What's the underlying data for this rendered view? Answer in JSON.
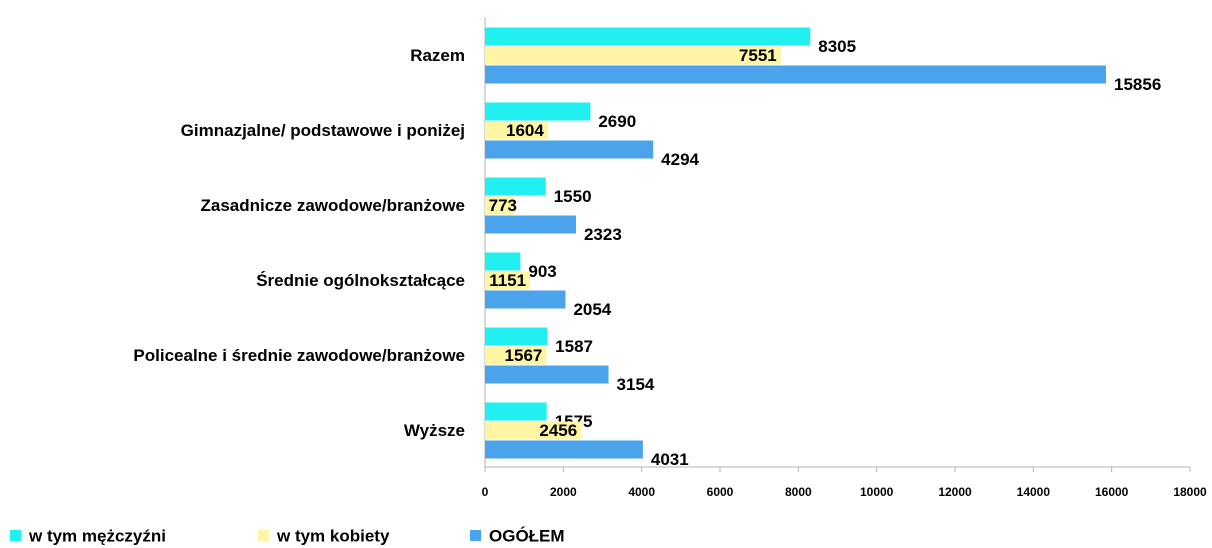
{
  "chart_data": {
    "type": "hbar",
    "categories": [
      "Razem",
      "Gimnazjalne/ podstawowe i poniżej",
      "Zasadnicze zawodowe/branżowe",
      "Średnie ogólnokształcące",
      "Policealne i średnie zawodowe/branżowe",
      "Wyższe"
    ],
    "series": [
      {
        "name": "w tym mężczyźni",
        "color": "#22f0f0",
        "values": [
          8305,
          2690,
          1550,
          903,
          1587,
          1575
        ]
      },
      {
        "name": "w tym kobiety",
        "color": "#fff5a3",
        "values": [
          7551,
          1604,
          773,
          1151,
          1567,
          2456
        ]
      },
      {
        "name": "OGÓŁEM",
        "color": "#4ba3ec",
        "values": [
          15856,
          4294,
          2323,
          2054,
          3154,
          4031
        ]
      }
    ],
    "xlim": [
      0,
      18000
    ],
    "xticks": [
      0,
      2000,
      4000,
      6000,
      8000,
      10000,
      12000,
      14000,
      16000,
      18000
    ],
    "legend": "bottom"
  }
}
